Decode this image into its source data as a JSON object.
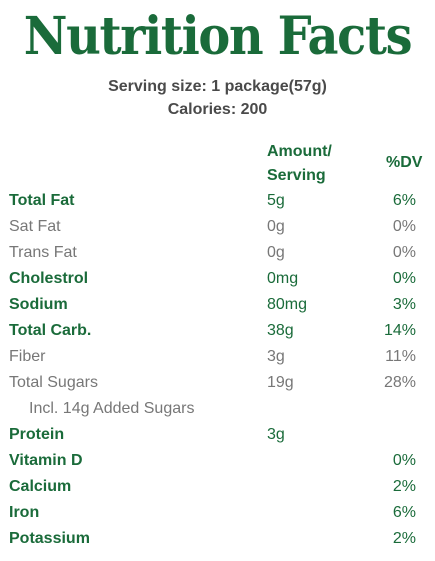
{
  "title": "Nutrition Facts",
  "serving": {
    "size": "Serving size: 1 package(57g)",
    "calories": "Calories: 200"
  },
  "columns": {
    "amount": "Amount/ Serving",
    "dv": "%DV"
  },
  "colors": {
    "brand_green": "#1a6b3a",
    "muted_gray": "#777777",
    "dark_gray": "#4a4a4a"
  },
  "rows": [
    {
      "name": "Total Fat",
      "amount": "5g",
      "dv": "6%",
      "style": "bold"
    },
    {
      "name": "Sat Fat",
      "amount": "0g",
      "dv": "0%",
      "style": "sub"
    },
    {
      "name": "Trans Fat",
      "amount": "0g",
      "dv": "0%",
      "style": "sub"
    },
    {
      "name": "Cholestrol",
      "amount": "0mg",
      "dv": "0%",
      "style": "bold"
    },
    {
      "name": "Sodium",
      "amount": "80mg",
      "dv": "3%",
      "style": "bold"
    },
    {
      "name": "Total Carb.",
      "amount": "38g",
      "dv": "14%",
      "style": "bold"
    },
    {
      "name": "Fiber",
      "amount": "3g",
      "dv": "11%",
      "style": "sub"
    },
    {
      "name": "Total Sugars",
      "amount": "19g",
      "dv": "28%",
      "style": "sub"
    },
    {
      "name": "Incl. 14g Added Sugars",
      "amount": "",
      "dv": "",
      "style": "subsub"
    },
    {
      "name": "Protein",
      "amount": "3g",
      "dv": "",
      "style": "bold"
    },
    {
      "name": "Vitamin D",
      "amount": "",
      "dv": "0%",
      "style": "bold"
    },
    {
      "name": "Calcium",
      "amount": "",
      "dv": "2%",
      "style": "bold"
    },
    {
      "name": "Iron",
      "amount": "",
      "dv": "6%",
      "style": "bold"
    },
    {
      "name": "Potassium",
      "amount": "",
      "dv": "2%",
      "style": "bold"
    }
  ]
}
